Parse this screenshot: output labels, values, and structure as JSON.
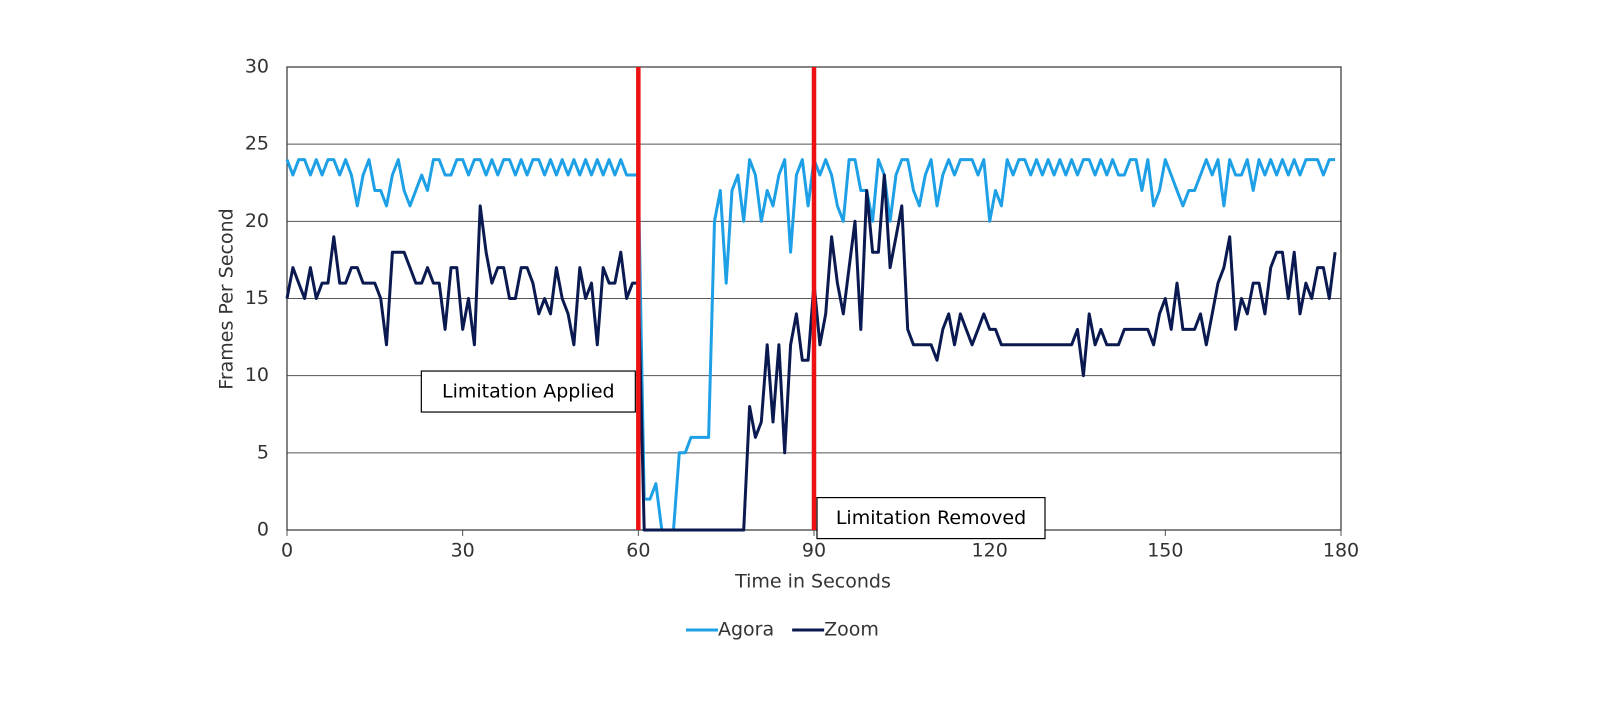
{
  "chart_data": {
    "type": "line",
    "x_label": "Time in Seconds",
    "y_label": "Frames Per Second",
    "x": [
      0,
      1,
      2,
      3,
      4,
      5,
      6,
      7,
      8,
      9,
      10,
      11,
      12,
      13,
      14,
      15,
      16,
      17,
      18,
      19,
      20,
      21,
      22,
      23,
      24,
      25,
      26,
      27,
      28,
      29,
      30,
      31,
      32,
      33,
      34,
      35,
      36,
      37,
      38,
      39,
      40,
      41,
      42,
      43,
      44,
      45,
      46,
      47,
      48,
      49,
      50,
      51,
      52,
      53,
      54,
      55,
      56,
      57,
      58,
      59,
      60,
      61,
      62,
      63,
      64,
      65,
      66,
      67,
      68,
      69,
      70,
      71,
      72,
      73,
      74,
      75,
      76,
      77,
      78,
      79,
      80,
      81,
      82,
      83,
      84,
      85,
      86,
      87,
      88,
      89,
      90,
      91,
      92,
      93,
      94,
      95,
      96,
      97,
      98,
      99,
      100,
      101,
      102,
      103,
      104,
      105,
      106,
      107,
      108,
      109,
      110,
      111,
      112,
      113,
      114,
      115,
      116,
      117,
      118,
      119,
      120,
      121,
      122,
      123,
      124,
      125,
      126,
      127,
      128,
      129,
      130,
      131,
      132,
      133,
      134,
      135,
      136,
      137,
      138,
      139,
      140,
      141,
      142,
      143,
      144,
      145,
      146,
      147,
      148,
      149,
      150,
      151,
      152,
      153,
      154,
      155,
      156,
      157,
      158,
      159,
      160,
      161,
      162,
      163,
      164,
      165,
      166,
      167,
      168,
      169,
      170,
      171,
      172,
      173,
      174,
      175,
      176,
      177,
      178,
      179
    ],
    "series": [
      {
        "name": "Agora",
        "color": "#1ea0e6",
        "values": [
          24,
          23,
          24,
          24,
          23,
          24,
          23,
          24,
          24,
          23,
          24,
          23,
          21,
          23,
          24,
          22,
          22,
          21,
          23,
          24,
          22,
          21,
          22,
          23,
          22,
          24,
          24,
          23,
          23,
          24,
          24,
          23,
          24,
          24,
          23,
          24,
          23,
          24,
          24,
          23,
          24,
          23,
          24,
          24,
          23,
          24,
          23,
          24,
          23,
          24,
          23,
          24,
          23,
          24,
          23,
          24,
          23,
          24,
          23,
          23,
          23,
          2,
          2,
          3,
          0,
          0,
          0,
          5,
          5,
          6,
          6,
          6,
          6,
          20,
          22,
          16,
          22,
          23,
          20,
          24,
          23,
          20,
          22,
          21,
          23,
          24,
          18,
          23,
          24,
          21,
          24,
          23,
          24,
          23,
          21,
          20,
          24,
          24,
          22,
          22,
          20,
          24,
          23,
          20,
          23,
          24,
          24,
          22,
          21,
          23,
          24,
          21,
          23,
          24,
          23,
          24,
          24,
          24,
          23,
          24,
          20,
          22,
          21,
          24,
          23,
          24,
          24,
          23,
          24,
          23,
          24,
          23,
          24,
          23,
          24,
          23,
          24,
          24,
          23,
          24,
          23,
          24,
          23,
          23,
          24,
          24,
          22,
          24,
          21,
          22,
          24,
          23,
          22,
          21,
          22,
          22,
          23,
          24,
          23,
          24,
          21,
          24,
          23,
          23,
          24,
          22,
          24,
          23,
          24,
          23,
          24,
          23,
          24,
          23,
          24,
          24,
          24,
          23,
          24,
          24
        ]
      },
      {
        "name": "Zoom",
        "color": "#0a1a50",
        "values": [
          15,
          17,
          16,
          15,
          17,
          15,
          16,
          16,
          19,
          16,
          16,
          17,
          17,
          16,
          16,
          16,
          15,
          12,
          18,
          18,
          18,
          17,
          16,
          16,
          17,
          16,
          16,
          13,
          17,
          17,
          13,
          15,
          12,
          21,
          18,
          16,
          17,
          17,
          15,
          15,
          17,
          17,
          16,
          14,
          15,
          14,
          17,
          15,
          14,
          12,
          17,
          15,
          16,
          12,
          17,
          16,
          16,
          18,
          15,
          16,
          16,
          0,
          0,
          0,
          0,
          0,
          0,
          0,
          0,
          0,
          0,
          0,
          0,
          0,
          0,
          0,
          0,
          0,
          0,
          8,
          6,
          7,
          12,
          7,
          12,
          5,
          12,
          14,
          11,
          11,
          16,
          12,
          14,
          19,
          16,
          14,
          17,
          20,
          13,
          22,
          18,
          18,
          23,
          17,
          19,
          21,
          13,
          12,
          12,
          12,
          12,
          11,
          13,
          14,
          12,
          14,
          13,
          12,
          13,
          14,
          13,
          13,
          12,
          12,
          12,
          12,
          12,
          12,
          12,
          12,
          12,
          12,
          12,
          12,
          12,
          13,
          10,
          14,
          12,
          13,
          12,
          12,
          12,
          13,
          13,
          13,
          13,
          13,
          12,
          14,
          15,
          13,
          16,
          13,
          13,
          13,
          14,
          12,
          14,
          16,
          17,
          19,
          13,
          15,
          14,
          16,
          16,
          14,
          17,
          18,
          18,
          15,
          18,
          14,
          16,
          15,
          17,
          17,
          15,
          18
        ]
      }
    ],
    "markers": [
      {
        "x": 60,
        "color": "#ee1111",
        "label": "Limitation Applied"
      },
      {
        "x": 90,
        "color": "#ee1111",
        "label": "Limitation Removed"
      }
    ],
    "xlim": [
      0,
      180
    ],
    "xticks": [
      0,
      30,
      60,
      90,
      120,
      150,
      180
    ],
    "ylim": [
      0,
      30
    ],
    "yticks": [
      0,
      5,
      10,
      15,
      20,
      25,
      30
    ],
    "grid": true,
    "legend": "bottom"
  }
}
